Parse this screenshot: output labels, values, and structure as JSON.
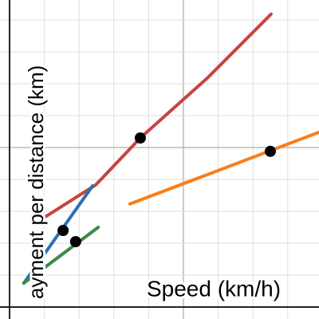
{
  "chart_data": {
    "type": "line",
    "x_label": "Speed (km/h)",
    "y_label": "ayment per distance (km)",
    "xlim": [
      -0.275,
      8.9
    ],
    "ylim": [
      -0.375,
      9.625
    ],
    "grid": true,
    "series": [
      {
        "color": "#c74440",
        "x": [
          1.03,
          2.48,
          3.76,
          5.69,
          7.52
        ],
        "values": [
          2.83,
          3.83,
          5.3,
          7.18,
          9.18
        ]
      },
      {
        "color": "#2d70b3",
        "x": [
          0.41,
          2.39
        ],
        "values": [
          0.75,
          3.8
        ]
      },
      {
        "color": "#388c46",
        "x": [
          0.41,
          2.55
        ],
        "values": [
          0.75,
          2.5
        ]
      },
      {
        "color": "#fa7e19",
        "x": [
          3.46,
          8.9
        ],
        "values": [
          3.23,
          5.48
        ]
      }
    ],
    "points": {
      "color": "#000000",
      "x": [
        1.54,
        1.9,
        3.76,
        7.5
      ],
      "values": [
        2.4,
        2.05,
        5.3,
        4.88
      ]
    }
  }
}
